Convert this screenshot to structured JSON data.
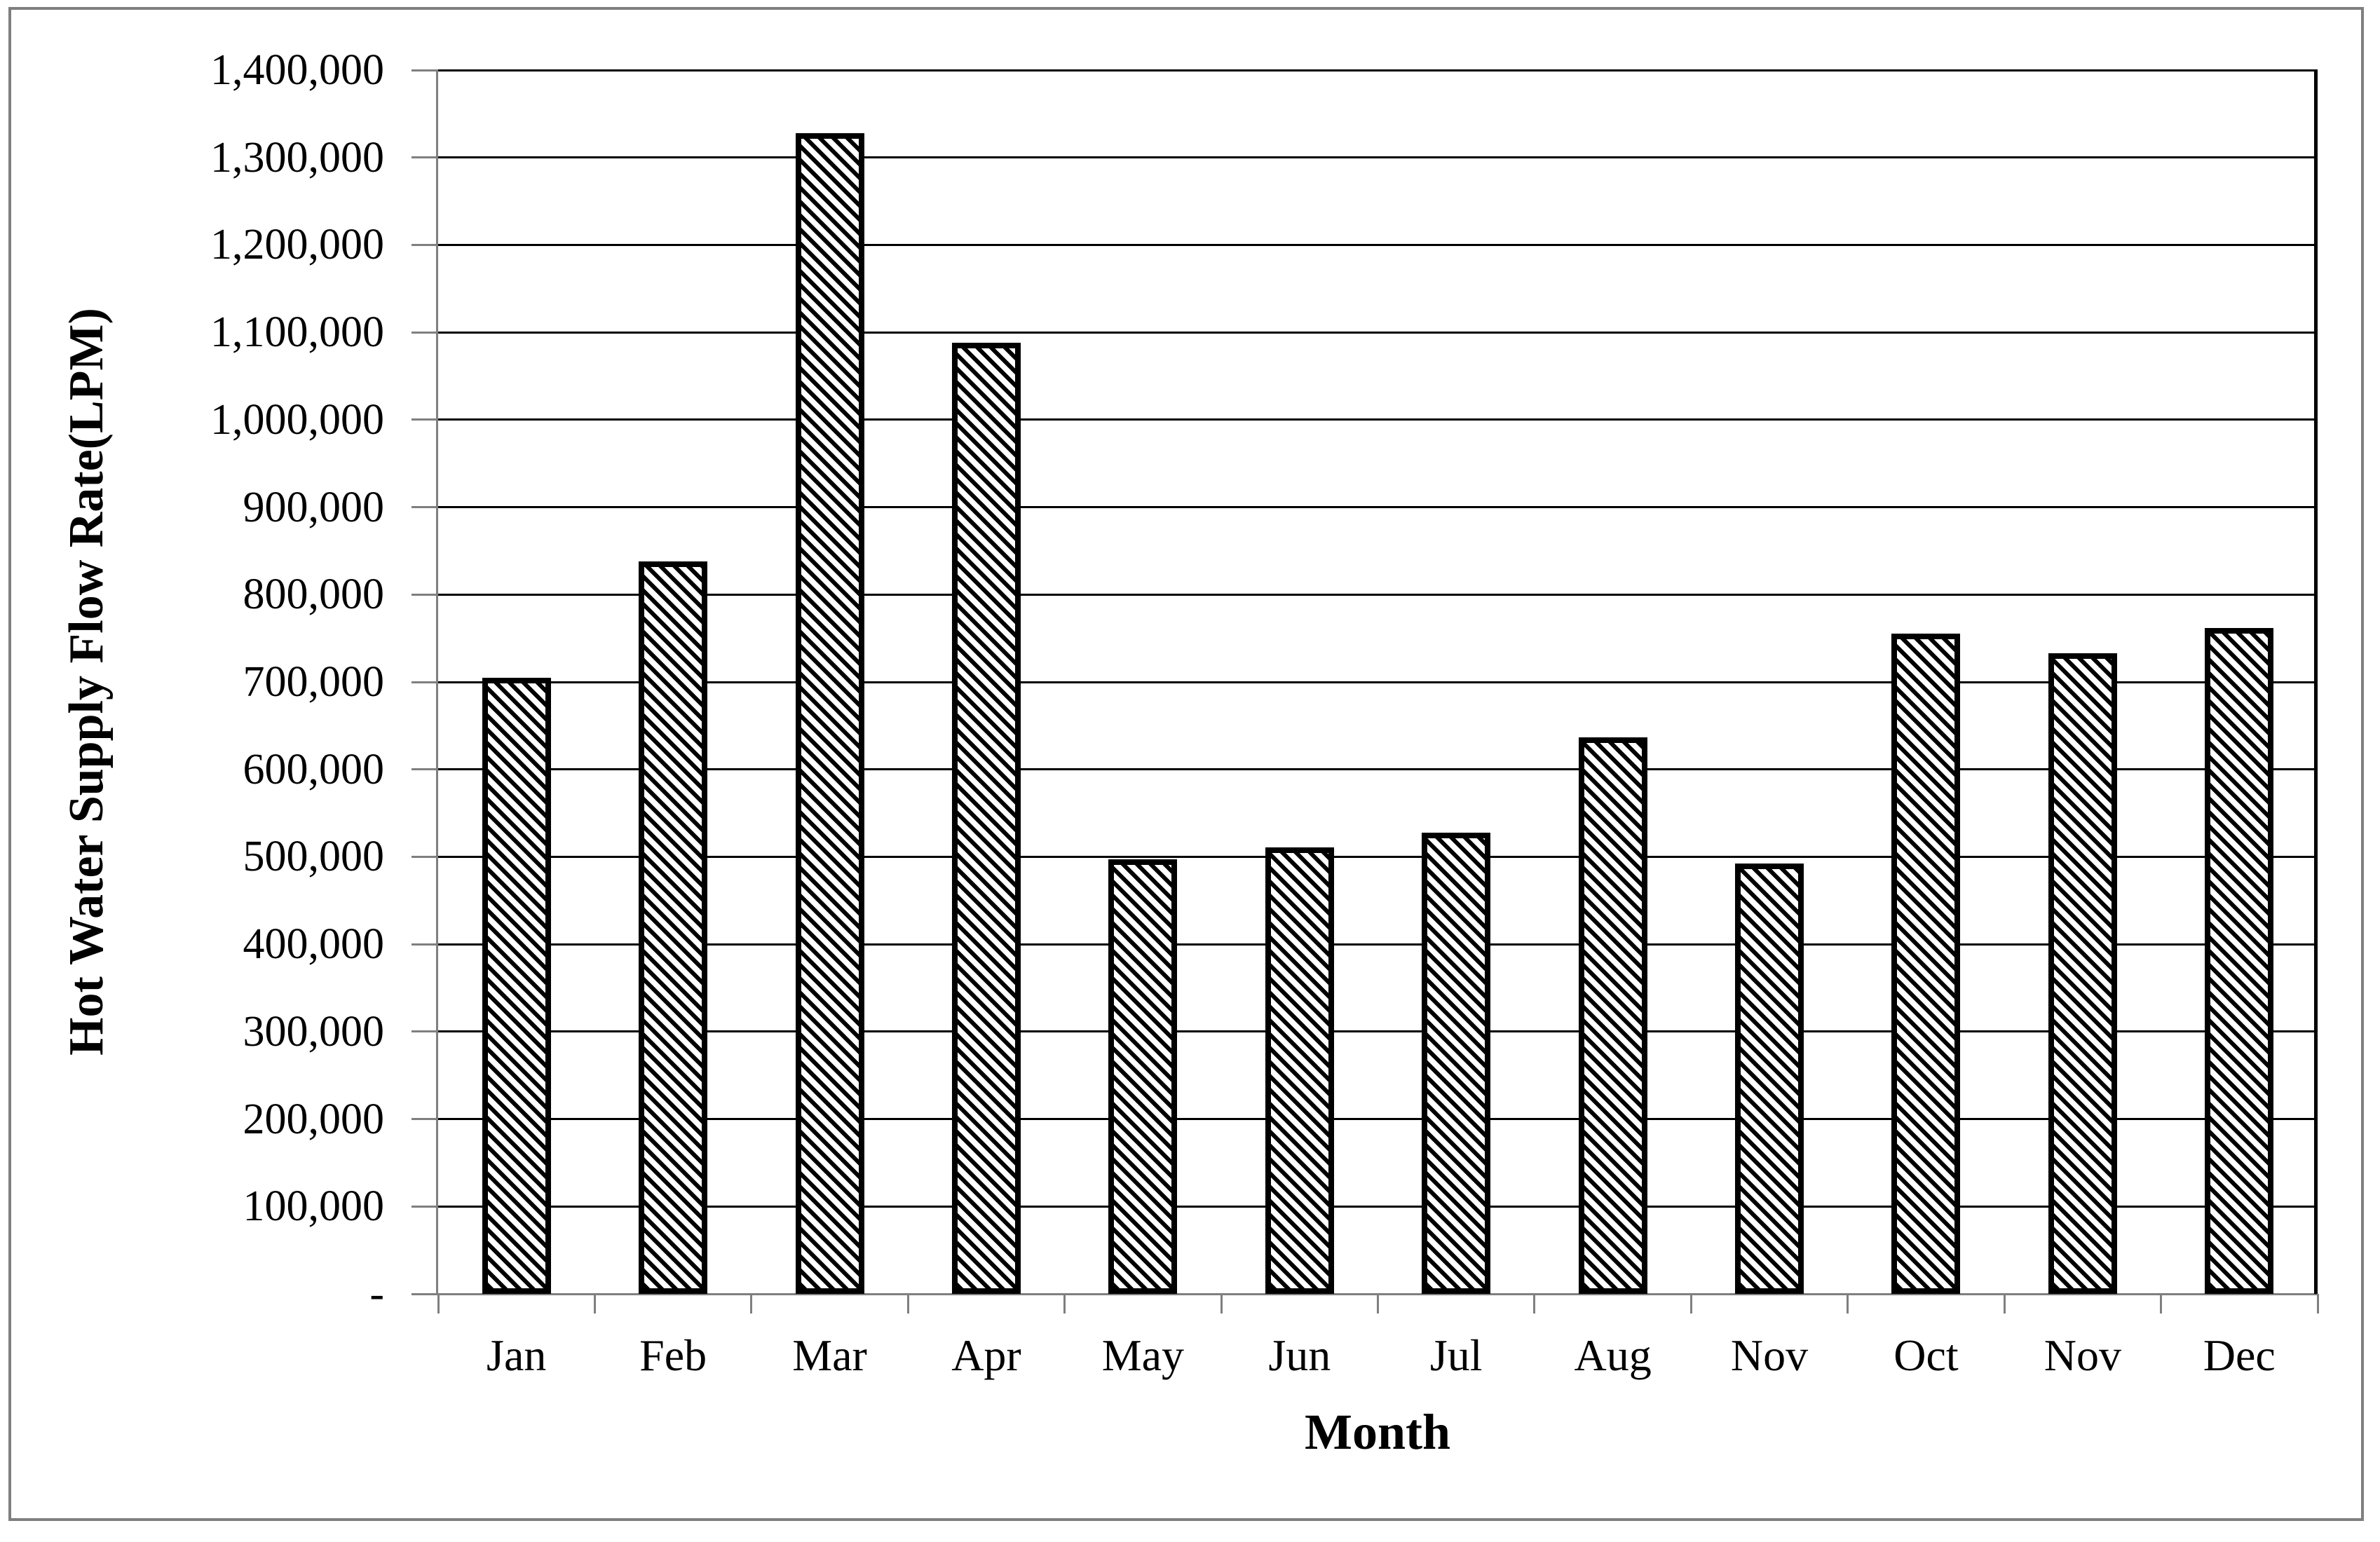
{
  "chart_data": {
    "type": "bar",
    "title": "",
    "xlabel": "Month",
    "ylabel": "Hot Water Supply Flow Rate(LPM)",
    "categories": [
      "Jan",
      "Feb",
      "Mar",
      "Apr",
      "May",
      "Jun",
      "Jul",
      "Aug",
      "Nov",
      "Oct",
      "Nov",
      "Dec"
    ],
    "values": [
      705000,
      838000,
      1328000,
      1088000,
      497000,
      511000,
      528000,
      637000,
      492000,
      755000,
      733000,
      762000
    ],
    "ylim": [
      0,
      1400000
    ],
    "y_ticks": [
      {
        "label": "1,400,000",
        "value": 1400000
      },
      {
        "label": "1,300,000",
        "value": 1300000
      },
      {
        "label": "1,200,000",
        "value": 1200000
      },
      {
        "label": "1,100,000",
        "value": 1100000
      },
      {
        "label": "1,000,000",
        "value": 1000000
      },
      {
        "label": "900,000",
        "value": 900000
      },
      {
        "label": "800,000",
        "value": 800000
      },
      {
        "label": "700,000",
        "value": 700000
      },
      {
        "label": "600,000",
        "value": 600000
      },
      {
        "label": "500,000",
        "value": 500000
      },
      {
        "label": "400,000",
        "value": 400000
      },
      {
        "label": "300,000",
        "value": 300000
      },
      {
        "label": "200,000",
        "value": 200000
      },
      {
        "label": "100,000",
        "value": 100000
      },
      {
        "label": "-",
        "value": 0
      }
    ],
    "grid": "horizontal",
    "legend": "none",
    "bar_style": "diagonal-hatch",
    "colors": {
      "bar_fill": "#ffffff",
      "bar_hatch": "#000000",
      "gridline": "#000000",
      "axis": "#7f7f7f",
      "frame": "#7f7f7f"
    }
  }
}
